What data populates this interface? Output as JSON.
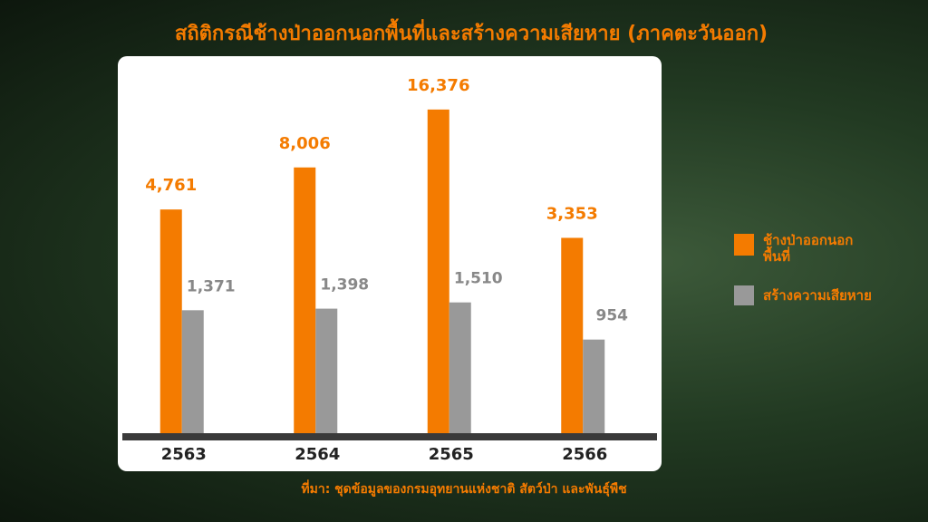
{
  "chart_data": {
    "type": "bar",
    "title": "สถิติกรณีช้างป่าออกนอกพื้นที่และสร้างความเสียหาย (ภาคตะวันออก)",
    "categories": [
      "2563",
      "2564",
      "2565",
      "2566"
    ],
    "series": [
      {
        "name": "ช้างป่าออกนอกพื้นที่",
        "color": "#f47b00",
        "values": [
          4761,
          8006,
          16376,
          3353
        ],
        "value_labels": [
          "4,761",
          "8,006",
          "16,376",
          "3,353"
        ]
      },
      {
        "name": "สร้างความเสียหาย",
        "color": "#999999",
        "values": [
          1371,
          1398,
          1510,
          954
        ],
        "value_labels": [
          "1,371",
          "1,398",
          "1,510",
          "954"
        ]
      }
    ],
    "log_scale": true,
    "ylim": [
      300,
      20000
    ],
    "source": "ที่มา: ชุดข้อมูลของกรมอุทยานแห่งชาติ สัตว์ป่า และพันธุ์พืช"
  }
}
